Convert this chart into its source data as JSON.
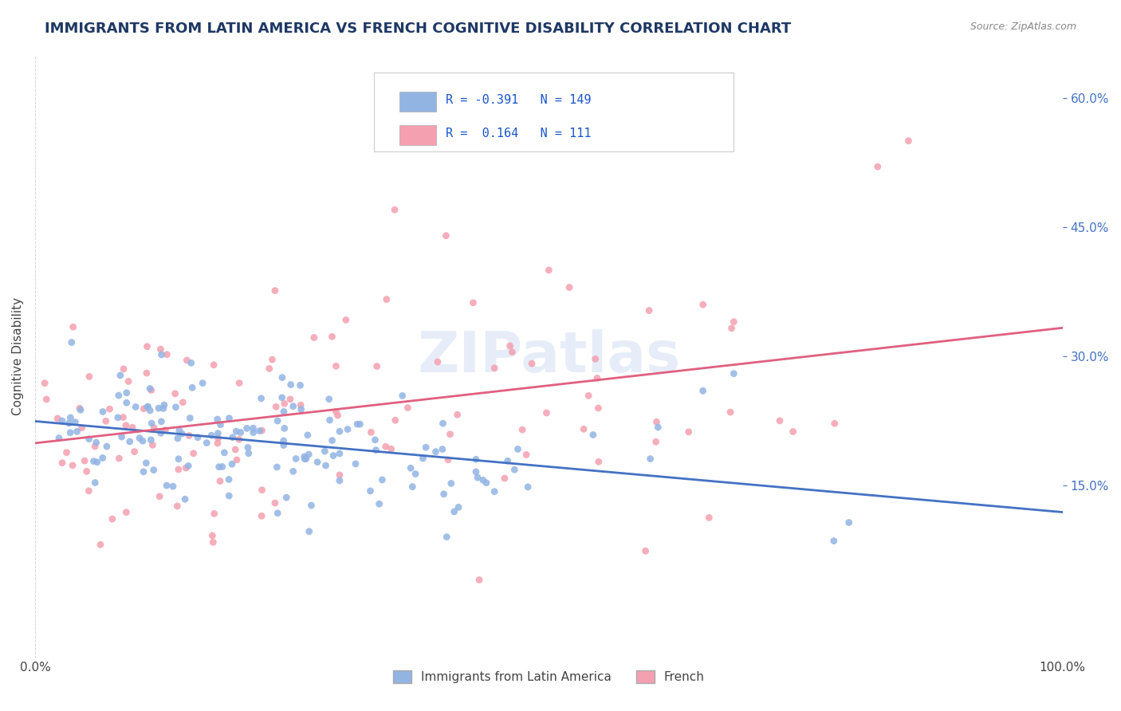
{
  "title": "IMMIGRANTS FROM LATIN AMERICA VS FRENCH COGNITIVE DISABILITY CORRELATION CHART",
  "source": "Source: ZipAtlas.com",
  "xlabel": "",
  "ylabel": "Cognitive Disability",
  "legend_label_1": "Immigrants from Latin America",
  "legend_label_2": "French",
  "r1": -0.391,
  "n1": 149,
  "r2": 0.164,
  "n2": 111,
  "color1": "#92b4e3",
  "color2": "#f4a0b0",
  "line_color1": "#4472c4",
  "line_color2": "#e06080",
  "bg_color": "#ffffff",
  "grid_color": "#cccccc",
  "title_color": "#1f3864",
  "watermark": "ZIPatlas",
  "xlim": [
    0.0,
    1.0
  ],
  "ylim": [
    -0.05,
    0.65
  ],
  "right_yticks": [
    0.15,
    0.3,
    0.45,
    0.6
  ],
  "right_ytick_labels": [
    "15.0%",
    "30.0%",
    "45.0%",
    "60.0%"
  ],
  "xtick_labels": [
    "0.0%",
    "100.0%"
  ],
  "seed1": 42,
  "seed2": 99
}
